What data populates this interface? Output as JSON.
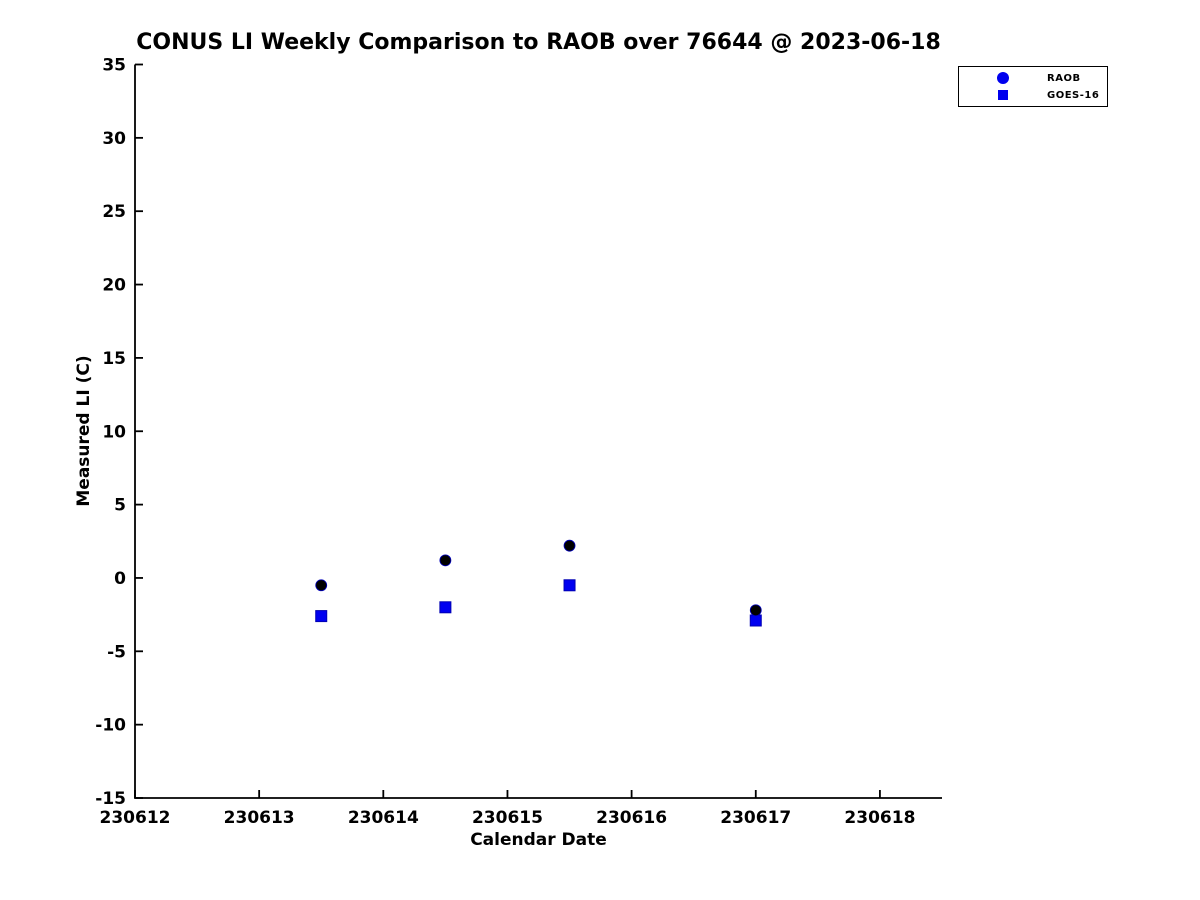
{
  "chart_data": {
    "type": "scatter",
    "title": "CONUS LI Weekly Comparison to RAOB over 76644 @ 2023-06-18",
    "xlabel": "Calendar Date",
    "ylabel": "Measured LI (C)",
    "xlim": [
      230612,
      230618.5
    ],
    "ylim": [
      -15,
      35
    ],
    "xticks": [
      230612,
      230613,
      230614,
      230615,
      230616,
      230617,
      230618
    ],
    "yticks": [
      -15,
      -10,
      -5,
      0,
      5,
      10,
      15,
      20,
      25,
      30,
      35
    ],
    "grid": false,
    "legend_position": "top-right-outside",
    "axis_color": "#000000",
    "background_color": "#ffffff",
    "series": [
      {
        "name": "RAOB",
        "marker": "circle",
        "color": "#000000",
        "edge_color": "#0000bb",
        "legend_color": "#0000ee",
        "x": [
          230613.5,
          230614.5,
          230615.5,
          230617
        ],
        "y": [
          -0.5,
          1.2,
          2.2,
          -2.2
        ]
      },
      {
        "name": "GOES-16",
        "marker": "square",
        "color": "#0000f0",
        "edge_color": "#0000b4",
        "legend_color": "#0000ee",
        "x": [
          230613.5,
          230614.5,
          230615.5,
          230617
        ],
        "y": [
          -2.6,
          -2.0,
          -0.5,
          -2.9
        ]
      }
    ]
  }
}
